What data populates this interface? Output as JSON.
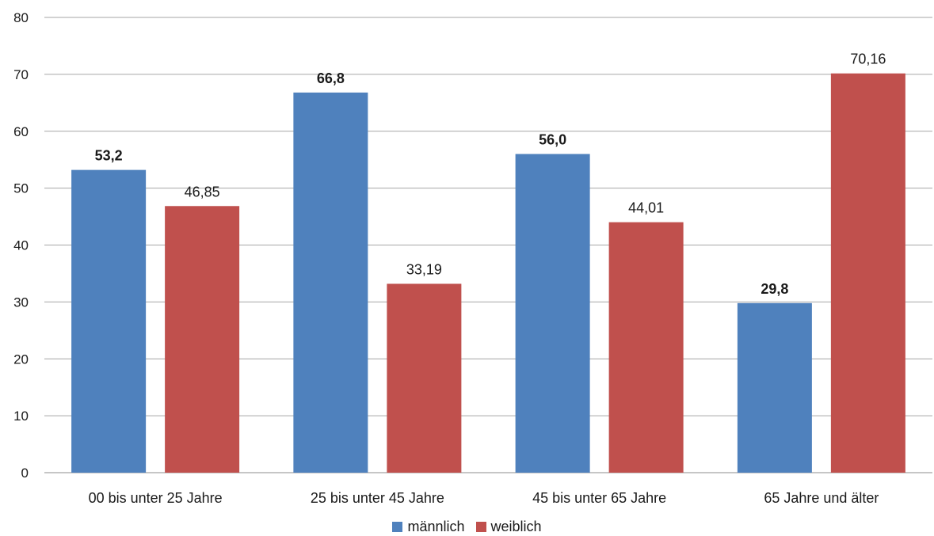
{
  "chart_data": {
    "type": "bar",
    "title": "",
    "xlabel": "",
    "ylabel": "",
    "ylim": [
      0,
      80
    ],
    "yticks": [
      "0",
      "10",
      "20",
      "30",
      "40",
      "50",
      "60",
      "70",
      "80"
    ],
    "grid": true,
    "legend_position": "bottom",
    "categories": [
      "00 bis unter 25 Jahre",
      "25 bis unter 45 Jahre",
      "45 bis unter 65 Jahre",
      "65 Jahre und älter"
    ],
    "series": [
      {
        "name": "männlich",
        "color": "#4f81bd",
        "values": [
          53.2,
          66.8,
          56.0,
          29.8
        ],
        "labels": [
          "53,2",
          "66,8",
          "56,0",
          "29,8"
        ],
        "label_bold": true
      },
      {
        "name": "weiblich",
        "color": "#c0504d",
        "values": [
          46.85,
          33.19,
          44.01,
          70.16
        ],
        "labels": [
          "46,85",
          "33,19",
          "44,01",
          "70,16"
        ],
        "label_bold": false
      }
    ]
  }
}
